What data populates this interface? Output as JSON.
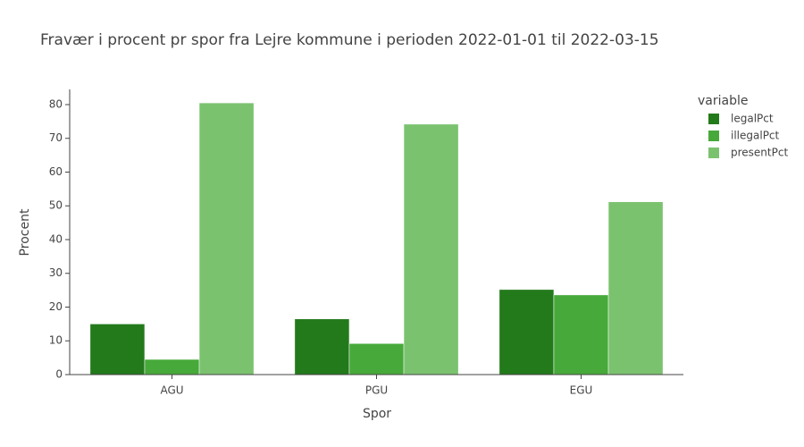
{
  "chart_data": {
    "type": "bar",
    "title": "Fravær i procent pr spor fra Lejre kommune i perioden 2022-01-01 til 2022-03-15",
    "x_label": "Spor",
    "y_label": "Procent",
    "legend_title": "variable",
    "categories": [
      "AGU",
      "PGU",
      "EGU"
    ],
    "series": [
      {
        "name": "legalPct",
        "color": "#237a1b",
        "values": [
          15,
          16.5,
          25.2
        ]
      },
      {
        "name": "illegalPct",
        "color": "#47a93a",
        "values": [
          4.5,
          9.2,
          23.6
        ]
      },
      {
        "name": "presentPct",
        "color": "#7bc26f",
        "values": [
          80.5,
          74.2,
          51.2
        ]
      }
    ],
    "ylim": [
      0,
      84.5
    ],
    "yticks": [
      0,
      10,
      20,
      30,
      40,
      50,
      60,
      70,
      80
    ],
    "legend_position": "right"
  }
}
